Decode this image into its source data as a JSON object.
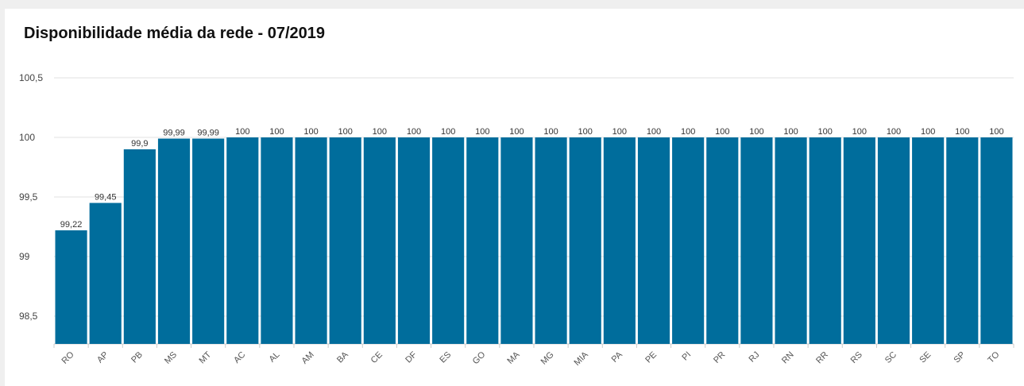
{
  "chart_data": {
    "type": "bar",
    "title": "Disponibilidade média da rede - 07/2019",
    "xlabel": "",
    "ylabel": "",
    "ylim": [
      98.25,
      100.5
    ],
    "y_ticks": [
      "98,5",
      "99",
      "99,5",
      "100",
      "100,5"
    ],
    "categories": [
      "RO",
      "AP",
      "PB",
      "MS",
      "MT",
      "AC",
      "AL",
      "AM",
      "BA",
      "CE",
      "DF",
      "ES",
      "GO",
      "MA",
      "MG",
      "MIA",
      "PA",
      "PE",
      "PI",
      "PR",
      "RJ",
      "RN",
      "RR",
      "RS",
      "SC",
      "SE",
      "SP",
      "TO"
    ],
    "values": [
      99.22,
      99.45,
      99.9,
      99.99,
      99.99,
      100,
      100,
      100,
      100,
      100,
      100,
      100,
      100,
      100,
      100,
      100,
      100,
      100,
      100,
      100,
      100,
      100,
      100,
      100,
      100,
      100,
      100,
      100
    ],
    "data_labels": [
      "99,22",
      "99,45",
      "99,9",
      "99,99",
      "99,99",
      "100",
      "100",
      "100",
      "100",
      "100",
      "100",
      "100",
      "100",
      "100",
      "100",
      "100",
      "100",
      "100",
      "100",
      "100",
      "100",
      "100",
      "100",
      "100",
      "100",
      "100",
      "100",
      "100"
    ],
    "bar_color": "#006d9c",
    "grid": true,
    "legend": "none"
  }
}
